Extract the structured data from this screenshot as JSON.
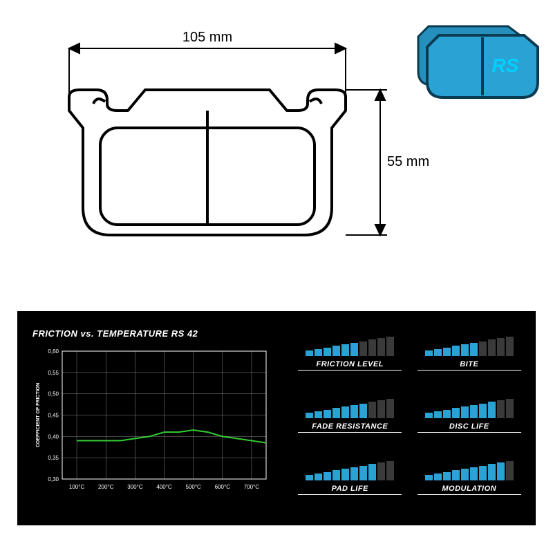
{
  "dimensions": {
    "width_label": "105 mm",
    "height_label": "55 mm",
    "label_fontsize": 18,
    "line_color": "#000000",
    "line_width": 2
  },
  "product_logo": {
    "text": "RS",
    "text_color": "#00d0ff",
    "pad_color": "#2aa3d4",
    "pad_stroke": "#0a3b52"
  },
  "chart": {
    "type": "line",
    "title": "FRICTION vs. TEMPERATURE RS 42",
    "xlabel_ticks": [
      "100°C",
      "200°C",
      "300°C",
      "400°C",
      "500°C",
      "600°C",
      "700°C"
    ],
    "ylabel": "COEFFICIENT OF FRICTION",
    "y_ticks": [
      "0,30",
      "0,35",
      "0,40",
      "0,45",
      "0,50",
      "0,55",
      "0,60"
    ],
    "ylim": [
      0.3,
      0.6
    ],
    "xlim": [
      50,
      750
    ],
    "series_color": "#33cc33",
    "grid_color": "#888888",
    "axis_color": "#ffffff",
    "tick_font_color": "#ffffff",
    "background": "#000000",
    "data": [
      {
        "x": 100,
        "y": 0.39
      },
      {
        "x": 150,
        "y": 0.39
      },
      {
        "x": 200,
        "y": 0.39
      },
      {
        "x": 250,
        "y": 0.39
      },
      {
        "x": 300,
        "y": 0.395
      },
      {
        "x": 350,
        "y": 0.4
      },
      {
        "x": 400,
        "y": 0.41
      },
      {
        "x": 450,
        "y": 0.41
      },
      {
        "x": 500,
        "y": 0.415
      },
      {
        "x": 550,
        "y": 0.41
      },
      {
        "x": 600,
        "y": 0.4
      },
      {
        "x": 650,
        "y": 0.395
      },
      {
        "x": 700,
        "y": 0.39
      },
      {
        "x": 750,
        "y": 0.385
      }
    ],
    "line_width": 2
  },
  "ratings": {
    "bar_count": 10,
    "bar_min_h": 8,
    "bar_max_h": 28,
    "filled_color": "#2aa3d4",
    "empty_color": "#3a3a3a",
    "items": [
      {
        "label": "FRICTION LEVEL",
        "value": 6
      },
      {
        "label": "BITE",
        "value": 6
      },
      {
        "label": "FADE RESISTANCE",
        "value": 7
      },
      {
        "label": "DISC LIFE",
        "value": 8
      },
      {
        "label": "PAD LIFE",
        "value": 8
      },
      {
        "label": "MODULATION",
        "value": 9
      }
    ]
  }
}
